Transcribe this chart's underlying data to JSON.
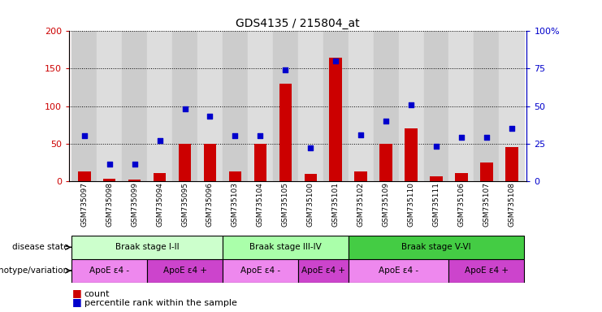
{
  "title": "GDS4135 / 215804_at",
  "samples": [
    "GSM735097",
    "GSM735098",
    "GSM735099",
    "GSM735094",
    "GSM735095",
    "GSM735096",
    "GSM735103",
    "GSM735104",
    "GSM735105",
    "GSM735100",
    "GSM735101",
    "GSM735102",
    "GSM735109",
    "GSM735110",
    "GSM735111",
    "GSM735106",
    "GSM735107",
    "GSM735108"
  ],
  "counts": [
    13,
    3,
    2,
    11,
    50,
    50,
    13,
    50,
    130,
    9,
    165,
    13,
    50,
    70,
    6,
    11,
    25,
    45
  ],
  "percentiles": [
    30,
    11,
    11,
    27,
    48,
    43,
    30,
    30,
    74,
    22,
    80,
    31,
    40,
    51,
    23,
    29,
    29,
    35
  ],
  "ylim_left": [
    0,
    200
  ],
  "ylim_right": [
    0,
    100
  ],
  "yticks_left": [
    0,
    50,
    100,
    150,
    200
  ],
  "yticks_right": [
    0,
    25,
    50,
    75,
    100
  ],
  "bar_color": "#cc0000",
  "scatter_color": "#0000cc",
  "disease_stages": [
    {
      "label": "Braak stage I-II",
      "start": 0,
      "end": 6,
      "color": "#ccffcc"
    },
    {
      "label": "Braak stage III-IV",
      "start": 6,
      "end": 11,
      "color": "#aaffaa"
    },
    {
      "label": "Braak stage V-VI",
      "start": 11,
      "end": 18,
      "color": "#44cc44"
    }
  ],
  "genotype_groups": [
    {
      "label": "ApoE ε4 -",
      "start": 0,
      "end": 3,
      "color": "#ee88ee"
    },
    {
      "label": "ApoE ε4 +",
      "start": 3,
      "end": 6,
      "color": "#cc44cc"
    },
    {
      "label": "ApoE ε4 -",
      "start": 6,
      "end": 9,
      "color": "#ee88ee"
    },
    {
      "label": "ApoE ε4 +",
      "start": 9,
      "end": 11,
      "color": "#cc44cc"
    },
    {
      "label": "ApoE ε4 -",
      "start": 11,
      "end": 15,
      "color": "#ee88ee"
    },
    {
      "label": "ApoE ε4 +",
      "start": 15,
      "end": 18,
      "color": "#cc44cc"
    }
  ],
  "legend_count_color": "#cc0000",
  "legend_pct_color": "#0000cc"
}
